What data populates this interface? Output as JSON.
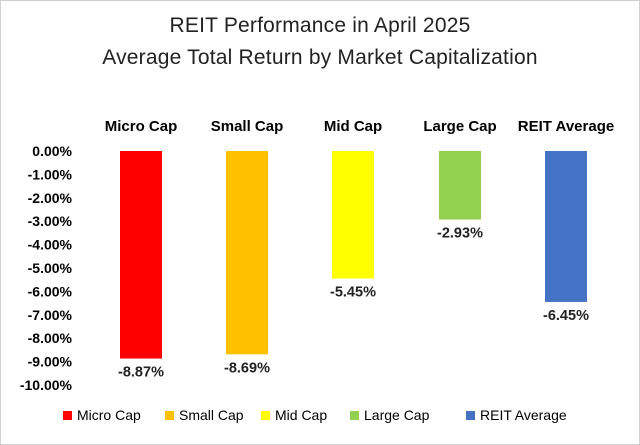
{
  "chart_data": {
    "type": "bar",
    "title": "REIT Performance  in April 2025",
    "subtitle": "Average Total Return by Market Capitalization",
    "categories": [
      "Micro Cap",
      "Small Cap",
      "Mid Cap",
      "Large Cap",
      "REIT Average"
    ],
    "values": [
      -8.87,
      -8.69,
      -5.45,
      -2.93,
      -6.45
    ],
    "data_labels": [
      "-8.87%",
      "-8.69%",
      "-5.45%",
      "-2.93%",
      "-6.45%"
    ],
    "colors": [
      "#ff0000",
      "#ffc000",
      "#ffff00",
      "#92d050",
      "#4472c4"
    ],
    "ylim": [
      -10,
      0
    ],
    "yticks": [
      0,
      -1,
      -2,
      -3,
      -4,
      -5,
      -6,
      -7,
      -8,
      -9,
      -10
    ],
    "ytick_labels": [
      "0.00%",
      "-1.00%",
      "-2.00%",
      "-3.00%",
      "-4.00%",
      "-5.00%",
      "-6.00%",
      "-7.00%",
      "-8.00%",
      "-9.00%",
      "-10.00%"
    ],
    "grid": false,
    "legend_position": "bottom",
    "legend": [
      "Micro Cap",
      "Small Cap",
      "Mid Cap",
      "Large Cap",
      "REIT Average"
    ]
  }
}
